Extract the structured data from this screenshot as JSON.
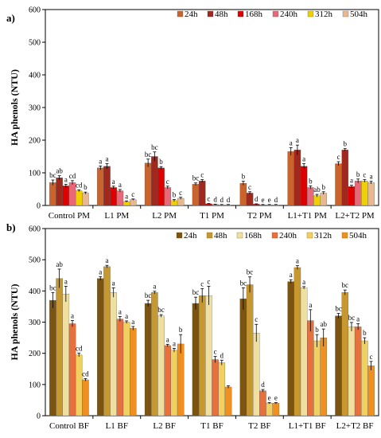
{
  "chart_data": [
    {
      "type": "bar",
      "panel_label": "a)",
      "ylabel": "HA phenols (NTU)",
      "ylim": [
        0,
        600
      ],
      "yticks": [
        0,
        100,
        200,
        300,
        400,
        500,
        600
      ],
      "legend_position": "top-right",
      "categories": [
        "Control PM",
        "L1 PM",
        "L2 PM",
        "T1 PM",
        "T2 PM",
        "L1+T1 PM",
        "L2+T2 PM"
      ],
      "series": [
        {
          "name": "24h",
          "color": "#c8642c",
          "values": [
            70,
            115,
            130,
            65,
            68,
            165,
            128
          ],
          "errors": [
            8,
            6,
            12,
            4,
            6,
            12,
            6
          ],
          "letters": [
            "bc",
            "a",
            "bc",
            "bc",
            "b",
            "a",
            "c"
          ]
        },
        {
          "name": "48h",
          "color": "#a0281c",
          "values": [
            85,
            120,
            150,
            75,
            38,
            170,
            170
          ],
          "errors": [
            6,
            8,
            14,
            4,
            4,
            15,
            4
          ],
          "letters": [
            "ab",
            "a",
            "bc",
            "c",
            "c",
            "a",
            "b"
          ]
        },
        {
          "name": "168h",
          "color": "#e00000",
          "values": [
            60,
            55,
            115,
            5,
            4,
            120,
            58
          ],
          "errors": [
            5,
            4,
            4,
            1,
            1,
            8,
            4
          ],
          "letters": [
            "a",
            "a",
            "b",
            "c",
            "d",
            "a",
            "a"
          ]
        },
        {
          "name": "240h",
          "color": "#e86878",
          "values": [
            70,
            45,
            55,
            3,
            2,
            55,
            75
          ],
          "errors": [
            6,
            4,
            4,
            1,
            1,
            5,
            6
          ],
          "letters": [
            "cd",
            "a",
            "c",
            "d",
            "e",
            "b",
            "b"
          ]
        },
        {
          "name": "312h",
          "color": "#f0d000",
          "values": [
            45,
            12,
            15,
            2,
            2,
            30,
            75
          ],
          "errors": [
            3,
            2,
            3,
            1,
            1,
            4,
            4
          ],
          "letters": [
            "cd",
            "a",
            "b",
            "d",
            "e",
            "ab",
            "c"
          ]
        },
        {
          "name": "504h",
          "color": "#e8b890",
          "values": [
            38,
            18,
            22,
            2,
            2,
            38,
            70
          ],
          "errors": [
            3,
            2,
            3,
            1,
            1,
            4,
            4
          ],
          "letters": [
            "b",
            "c",
            "c",
            "d",
            "d",
            "b",
            "a"
          ]
        }
      ]
    },
    {
      "type": "bar",
      "panel_label": "b)",
      "ylabel": "HA phenols (NTU)",
      "ylim": [
        0,
        600
      ],
      "yticks": [
        0,
        100,
        200,
        300,
        400,
        500,
        600
      ],
      "legend_position": "top-right",
      "categories": [
        "Control BF",
        "L1 BF",
        "L2 BF",
        "T1 BF",
        "T2 BF",
        "L1+T1 BF",
        "L2+T2 BF"
      ],
      "series": [
        {
          "name": "24h",
          "color": "#7a5410",
          "values": [
            370,
            440,
            360,
            360,
            375,
            430,
            320
          ],
          "errors": [
            25,
            6,
            10,
            20,
            35,
            6,
            8
          ],
          "letters": [
            "bc",
            "a",
            "bc",
            "bc",
            "bc",
            "a",
            "bc"
          ]
        },
        {
          "name": "48h",
          "color": "#c89830",
          "values": [
            440,
            478,
            395,
            385,
            420,
            475,
            395
          ],
          "errors": [
            30,
            4,
            4,
            22,
            25,
            6,
            8
          ],
          "letters": [
            "ab",
            "a",
            "a",
            "c",
            "bc",
            "a",
            "bc"
          ]
        },
        {
          "name": "168h",
          "color": "#f0e0a0",
          "values": [
            390,
            395,
            320,
            385,
            265,
            410,
            285
          ],
          "errors": [
            25,
            15,
            4,
            30,
            28,
            4,
            14
          ],
          "letters": [
            "a",
            "a",
            "bc",
            "c",
            "c",
            "a",
            "bc"
          ]
        },
        {
          "name": "240h",
          "color": "#e8703c",
          "values": [
            295,
            310,
            225,
            180,
            80,
            305,
            285
          ],
          "errors": [
            10,
            8,
            4,
            10,
            4,
            35,
            10
          ],
          "letters": [
            "a",
            "a",
            "a",
            "c",
            "d",
            "a",
            "a"
          ]
        },
        {
          "name": "312h",
          "color": "#f0d060",
          "values": [
            195,
            300,
            210,
            170,
            40,
            240,
            240
          ],
          "errors": [
            6,
            4,
            6,
            8,
            2,
            20,
            10
          ],
          "letters": [
            "cd",
            "a",
            "a",
            "d",
            "e",
            "b",
            "b"
          ]
        },
        {
          "name": "504h",
          "color": "#f09020",
          "values": [
            115,
            280,
            230,
            92,
            40,
            250,
            160
          ],
          "errors": [
            4,
            6,
            30,
            4,
            2,
            28,
            14
          ],
          "letters": [
            "cd",
            "a",
            "b",
            "",
            "e",
            "ab",
            "c"
          ]
        }
      ]
    }
  ]
}
